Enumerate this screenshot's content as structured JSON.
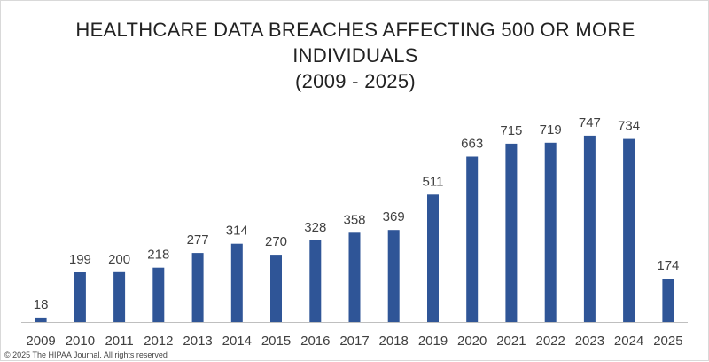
{
  "chart_data": {
    "type": "bar",
    "title": {
      "line1": "HEALTHCARE DATA BREACHES AFFECTING 500 OR MORE",
      "line2": "INDIVIDUALS",
      "line3": "(2009 - 2025)"
    },
    "xlabel": "",
    "ylabel": "",
    "categories": [
      "2009",
      "2010",
      "2011",
      "2012",
      "2013",
      "2014",
      "2015",
      "2016",
      "2017",
      "2018",
      "2019",
      "2020",
      "2021",
      "2022",
      "2023",
      "2024",
      "2025"
    ],
    "values": [
      18,
      199,
      200,
      218,
      277,
      314,
      270,
      328,
      358,
      369,
      511,
      663,
      715,
      719,
      747,
      734,
      174
    ],
    "ylim": [
      0,
      800
    ],
    "grid": false,
    "legend": "none",
    "bar_color": "#2f5597"
  },
  "footer": {
    "copyright": "© 2025 The HIPAA Journal. All rights reserved"
  }
}
